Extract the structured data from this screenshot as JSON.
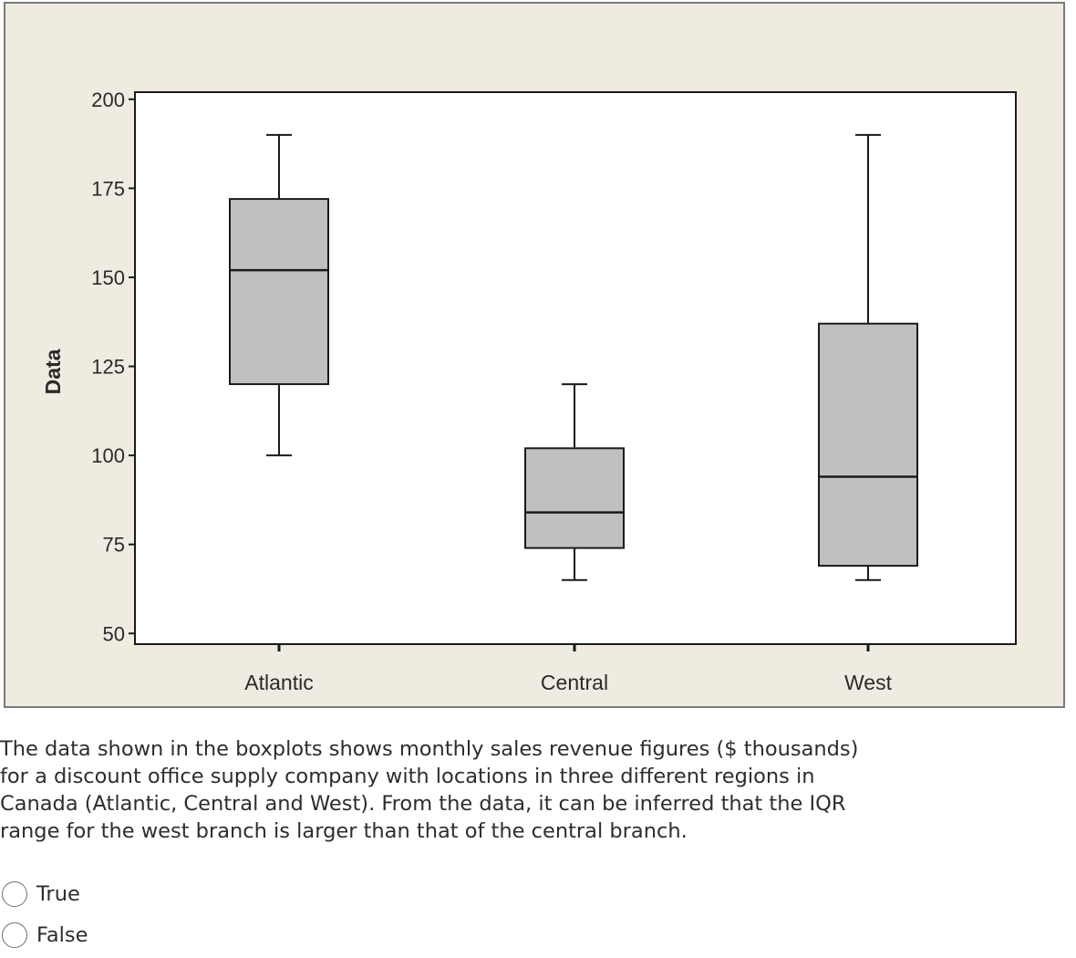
{
  "chart_data": {
    "type": "boxplot",
    "ylabel": "Data",
    "xlabel": "",
    "ylim": [
      47,
      202
    ],
    "yticks": [
      50,
      75,
      100,
      125,
      150,
      175,
      200
    ],
    "categories": [
      "Atlantic",
      "Central",
      "West"
    ],
    "boxes": [
      {
        "name": "Atlantic",
        "min": 100,
        "q1": 120,
        "median": 152,
        "q3": 172,
        "max": 190
      },
      {
        "name": "Central",
        "min": 65,
        "q1": 74,
        "median": 84,
        "q3": 102,
        "max": 120
      },
      {
        "name": "West",
        "min": 65,
        "q1": 69,
        "median": 94,
        "q3": 137,
        "max": 190
      }
    ],
    "box_fill": "#c0c0c0",
    "line_color": "#1a1a1a",
    "grid": false,
    "legend": "none"
  },
  "question": {
    "text": "The data shown in the boxplots shows monthly sales revenue figures ($ thousands) for a discount office supply company with locations in three different regions in Canada (Atlantic, Central and West). From the data, it can be inferred that the IQR range for the west branch is larger than that of the central branch."
  },
  "options": [
    {
      "label": "True"
    },
    {
      "label": "False"
    }
  ]
}
